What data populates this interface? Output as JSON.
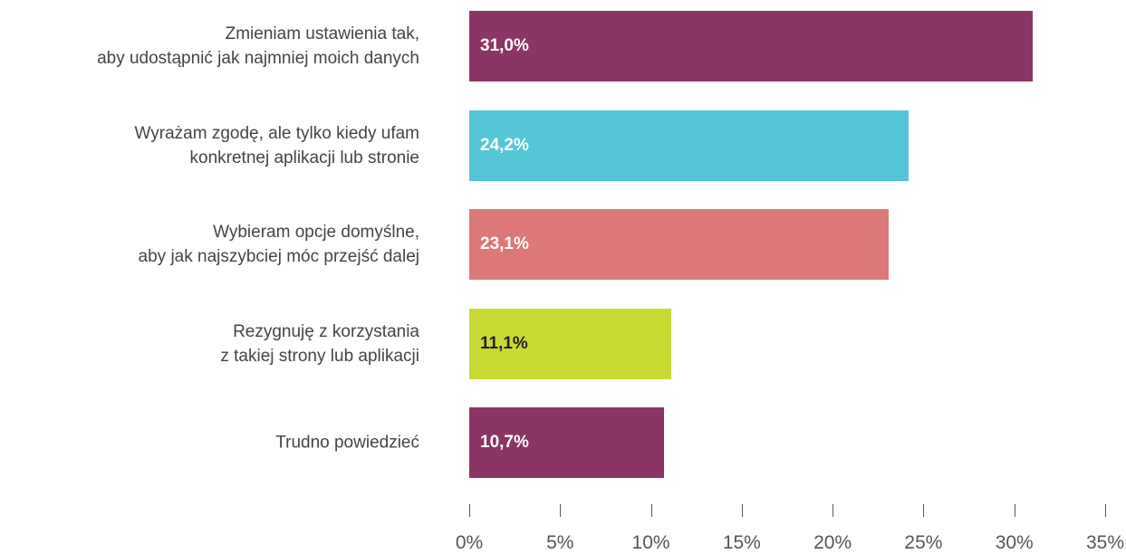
{
  "chart_data": {
    "type": "barh",
    "categories": [
      "Zmieniam ustawienia tak,\naby udostąpnić jak najmniej moich danych",
      "Wyrażam zgodę, ale tylko kiedy ufam\nkonkretnej aplikacji lub stronie",
      "Wybieram opcje domyślne,\naby jak najszybciej móc przejść dalej",
      "Rezygnuję z korzystania\nz takiej strony lub aplikacji",
      "Trudno powiedzieć"
    ],
    "values": [
      31.0,
      24.2,
      23.1,
      11.1,
      10.7
    ],
    "value_labels": [
      "31,0%",
      "24,2%",
      "23,1%",
      "11,1%",
      "10,7%"
    ],
    "colors": [
      "#8b3566",
      "#55c5d8",
      "#dc7878",
      "#c9d934",
      "#8b3566"
    ],
    "xlim": [
      0,
      35
    ],
    "xticks": [
      {
        "value": 0,
        "label": "0%"
      },
      {
        "value": 5,
        "label": "5%"
      },
      {
        "value": 10,
        "label": "10%"
      },
      {
        "value": 15,
        "label": "15%"
      },
      {
        "value": 20,
        "label": "20%"
      },
      {
        "value": 25,
        "label": "25%"
      },
      {
        "value": 30,
        "label": "30%"
      },
      {
        "value": 35,
        "label": "35%"
      }
    ]
  }
}
